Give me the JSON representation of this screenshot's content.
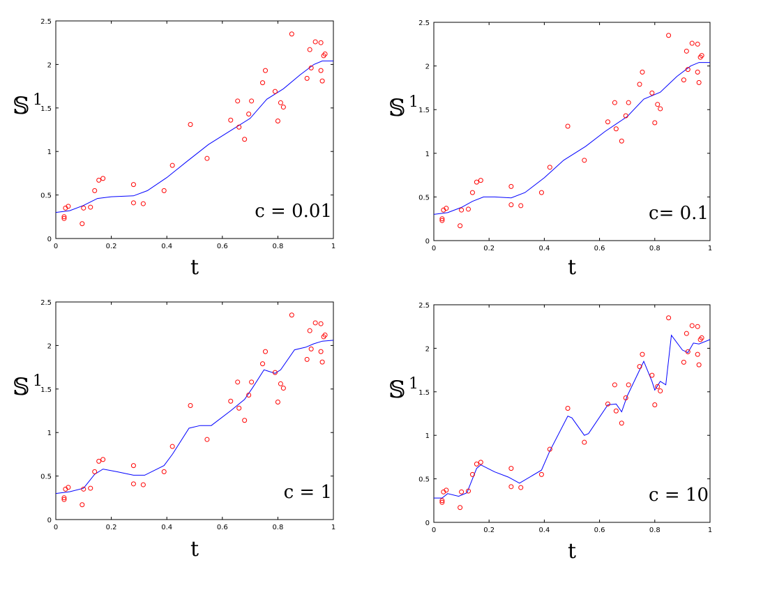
{
  "chart_data": [
    {
      "type": "scatter",
      "ylabel": "𝕊",
      "ylabel_sup": "1",
      "xlabel": "t",
      "annotation": "c = 0.01",
      "xlim": [
        0,
        1
      ],
      "ylim": [
        0,
        2.5
      ],
      "xticks": [
        "0",
        "0.2",
        "0.4",
        "0.6",
        "0.8",
        "1"
      ],
      "yticks": [
        "0",
        "0.5",
        "1",
        "1.5",
        "2",
        "2.5"
      ],
      "marker_color": "#ff0000",
      "line_color": "#0000ff",
      "points": [
        [
          0.03,
          0.25
        ],
        [
          0.03,
          0.23
        ],
        [
          0.035,
          0.35
        ],
        [
          0.045,
          0.37
        ],
        [
          0.095,
          0.17
        ],
        [
          0.1,
          0.35
        ],
        [
          0.125,
          0.36
        ],
        [
          0.14,
          0.55
        ],
        [
          0.155,
          0.67
        ],
        [
          0.17,
          0.69
        ],
        [
          0.28,
          0.62
        ],
        [
          0.28,
          0.41
        ],
        [
          0.315,
          0.4
        ],
        [
          0.39,
          0.55
        ],
        [
          0.42,
          0.84
        ],
        [
          0.485,
          1.31
        ],
        [
          0.545,
          0.92
        ],
        [
          0.63,
          1.36
        ],
        [
          0.655,
          1.58
        ],
        [
          0.66,
          1.28
        ],
        [
          0.68,
          1.14
        ],
        [
          0.695,
          1.43
        ],
        [
          0.705,
          1.58
        ],
        [
          0.745,
          1.79
        ],
        [
          0.755,
          1.93
        ],
        [
          0.79,
          1.69
        ],
        [
          0.8,
          1.35
        ],
        [
          0.81,
          1.56
        ],
        [
          0.82,
          1.51
        ],
        [
          0.85,
          2.35
        ],
        [
          0.905,
          1.84
        ],
        [
          0.915,
          2.17
        ],
        [
          0.92,
          1.96
        ],
        [
          0.935,
          2.26
        ],
        [
          0.955,
          2.25
        ],
        [
          0.955,
          1.93
        ],
        [
          0.96,
          1.81
        ],
        [
          0.965,
          2.1
        ],
        [
          0.97,
          2.12
        ]
      ],
      "curve": [
        [
          0,
          0.3
        ],
        [
          0.05,
          0.32
        ],
        [
          0.1,
          0.38
        ],
        [
          0.15,
          0.46
        ],
        [
          0.2,
          0.48
        ],
        [
          0.28,
          0.49
        ],
        [
          0.33,
          0.55
        ],
        [
          0.4,
          0.7
        ],
        [
          0.47,
          0.88
        ],
        [
          0.55,
          1.08
        ],
        [
          0.62,
          1.22
        ],
        [
          0.7,
          1.38
        ],
        [
          0.76,
          1.6
        ],
        [
          0.82,
          1.72
        ],
        [
          0.88,
          1.88
        ],
        [
          0.93,
          2.0
        ],
        [
          0.96,
          2.04
        ],
        [
          1,
          2.04
        ]
      ]
    },
    {
      "type": "scatter",
      "ylabel": "𝕊",
      "ylabel_sup": "1",
      "xlabel": "t",
      "annotation": "c= 0.1",
      "xlim": [
        0,
        1
      ],
      "ylim": [
        0,
        2.5
      ],
      "xticks": [
        "0",
        "0.2",
        "0.4",
        "0.6",
        "0.8",
        "1"
      ],
      "yticks": [
        "0",
        "0.5",
        "1",
        "1.5",
        "2",
        "2.5"
      ],
      "marker_color": "#ff0000",
      "line_color": "#0000ff",
      "points": [
        [
          0.03,
          0.25
        ],
        [
          0.03,
          0.23
        ],
        [
          0.035,
          0.35
        ],
        [
          0.045,
          0.37
        ],
        [
          0.095,
          0.17
        ],
        [
          0.1,
          0.35
        ],
        [
          0.125,
          0.36
        ],
        [
          0.14,
          0.55
        ],
        [
          0.155,
          0.67
        ],
        [
          0.17,
          0.69
        ],
        [
          0.28,
          0.62
        ],
        [
          0.28,
          0.41
        ],
        [
          0.315,
          0.4
        ],
        [
          0.39,
          0.55
        ],
        [
          0.42,
          0.84
        ],
        [
          0.485,
          1.31
        ],
        [
          0.545,
          0.92
        ],
        [
          0.63,
          1.36
        ],
        [
          0.655,
          1.58
        ],
        [
          0.66,
          1.28
        ],
        [
          0.68,
          1.14
        ],
        [
          0.695,
          1.43
        ],
        [
          0.705,
          1.58
        ],
        [
          0.745,
          1.79
        ],
        [
          0.755,
          1.93
        ],
        [
          0.79,
          1.69
        ],
        [
          0.8,
          1.35
        ],
        [
          0.81,
          1.56
        ],
        [
          0.82,
          1.51
        ],
        [
          0.85,
          2.35
        ],
        [
          0.905,
          1.84
        ],
        [
          0.915,
          2.17
        ],
        [
          0.92,
          1.96
        ],
        [
          0.935,
          2.26
        ],
        [
          0.955,
          2.25
        ],
        [
          0.955,
          1.93
        ],
        [
          0.96,
          1.81
        ],
        [
          0.965,
          2.1
        ],
        [
          0.97,
          2.12
        ]
      ],
      "curve": [
        [
          0,
          0.3
        ],
        [
          0.05,
          0.32
        ],
        [
          0.1,
          0.38
        ],
        [
          0.14,
          0.45
        ],
        [
          0.18,
          0.5
        ],
        [
          0.22,
          0.5
        ],
        [
          0.28,
          0.49
        ],
        [
          0.33,
          0.55
        ],
        [
          0.4,
          0.72
        ],
        [
          0.47,
          0.92
        ],
        [
          0.55,
          1.08
        ],
        [
          0.62,
          1.25
        ],
        [
          0.7,
          1.42
        ],
        [
          0.76,
          1.62
        ],
        [
          0.82,
          1.7
        ],
        [
          0.88,
          1.88
        ],
        [
          0.93,
          2.0
        ],
        [
          0.96,
          2.04
        ],
        [
          1,
          2.04
        ]
      ]
    },
    {
      "type": "scatter",
      "ylabel": "𝕊",
      "ylabel_sup": "1",
      "xlabel": "t",
      "annotation": "c = 1",
      "xlim": [
        0,
        1
      ],
      "ylim": [
        0,
        2.5
      ],
      "xticks": [
        "0",
        "0.2",
        "0.4",
        "0.6",
        "0.8",
        "1"
      ],
      "yticks": [
        "0",
        "0.5",
        "1",
        "1.5",
        "2",
        "2.5"
      ],
      "marker_color": "#ff0000",
      "line_color": "#0000ff",
      "points": [
        [
          0.03,
          0.25
        ],
        [
          0.03,
          0.23
        ],
        [
          0.035,
          0.35
        ],
        [
          0.045,
          0.37
        ],
        [
          0.095,
          0.17
        ],
        [
          0.1,
          0.35
        ],
        [
          0.125,
          0.36
        ],
        [
          0.14,
          0.55
        ],
        [
          0.155,
          0.67
        ],
        [
          0.17,
          0.69
        ],
        [
          0.28,
          0.62
        ],
        [
          0.28,
          0.41
        ],
        [
          0.315,
          0.4
        ],
        [
          0.39,
          0.55
        ],
        [
          0.42,
          0.84
        ],
        [
          0.485,
          1.31
        ],
        [
          0.545,
          0.92
        ],
        [
          0.63,
          1.36
        ],
        [
          0.655,
          1.58
        ],
        [
          0.66,
          1.28
        ],
        [
          0.68,
          1.14
        ],
        [
          0.695,
          1.43
        ],
        [
          0.705,
          1.58
        ],
        [
          0.745,
          1.79
        ],
        [
          0.755,
          1.93
        ],
        [
          0.79,
          1.69
        ],
        [
          0.8,
          1.35
        ],
        [
          0.81,
          1.56
        ],
        [
          0.82,
          1.51
        ],
        [
          0.85,
          2.35
        ],
        [
          0.905,
          1.84
        ],
        [
          0.915,
          2.17
        ],
        [
          0.92,
          1.96
        ],
        [
          0.935,
          2.26
        ],
        [
          0.955,
          2.25
        ],
        [
          0.955,
          1.93
        ],
        [
          0.96,
          1.81
        ],
        [
          0.965,
          2.1
        ],
        [
          0.97,
          2.12
        ]
      ],
      "curve": [
        [
          0,
          0.3
        ],
        [
          0.05,
          0.32
        ],
        [
          0.1,
          0.36
        ],
        [
          0.14,
          0.52
        ],
        [
          0.17,
          0.58
        ],
        [
          0.22,
          0.55
        ],
        [
          0.28,
          0.51
        ],
        [
          0.32,
          0.51
        ],
        [
          0.39,
          0.62
        ],
        [
          0.42,
          0.75
        ],
        [
          0.48,
          1.05
        ],
        [
          0.52,
          1.08
        ],
        [
          0.56,
          1.08
        ],
        [
          0.63,
          1.25
        ],
        [
          0.68,
          1.38
        ],
        [
          0.71,
          1.52
        ],
        [
          0.75,
          1.72
        ],
        [
          0.79,
          1.68
        ],
        [
          0.81,
          1.72
        ],
        [
          0.86,
          1.95
        ],
        [
          0.9,
          1.98
        ],
        [
          0.93,
          2.02
        ],
        [
          0.96,
          2.05
        ],
        [
          1,
          2.06
        ]
      ]
    },
    {
      "type": "scatter",
      "ylabel": "𝕊",
      "ylabel_sup": "1",
      "xlabel": "t",
      "annotation": "c = 10",
      "xlim": [
        0,
        1
      ],
      "ylim": [
        0,
        2.5
      ],
      "xticks": [
        "0",
        "0.2",
        "0.4",
        "0.6",
        "0.8",
        "1"
      ],
      "yticks": [
        "0",
        "0.5",
        "1",
        "1.5",
        "2",
        "2.5"
      ],
      "marker_color": "#ff0000",
      "line_color": "#0000ff",
      "points": [
        [
          0.03,
          0.25
        ],
        [
          0.03,
          0.23
        ],
        [
          0.035,
          0.35
        ],
        [
          0.045,
          0.37
        ],
        [
          0.095,
          0.17
        ],
        [
          0.1,
          0.35
        ],
        [
          0.125,
          0.36
        ],
        [
          0.14,
          0.55
        ],
        [
          0.155,
          0.67
        ],
        [
          0.17,
          0.69
        ],
        [
          0.28,
          0.62
        ],
        [
          0.28,
          0.41
        ],
        [
          0.315,
          0.4
        ],
        [
          0.39,
          0.55
        ],
        [
          0.42,
          0.84
        ],
        [
          0.485,
          1.31
        ],
        [
          0.545,
          0.92
        ],
        [
          0.63,
          1.36
        ],
        [
          0.655,
          1.58
        ],
        [
          0.66,
          1.28
        ],
        [
          0.68,
          1.14
        ],
        [
          0.695,
          1.43
        ],
        [
          0.705,
          1.58
        ],
        [
          0.745,
          1.79
        ],
        [
          0.755,
          1.93
        ],
        [
          0.79,
          1.69
        ],
        [
          0.8,
          1.35
        ],
        [
          0.81,
          1.56
        ],
        [
          0.82,
          1.51
        ],
        [
          0.85,
          2.35
        ],
        [
          0.905,
          1.84
        ],
        [
          0.915,
          2.17
        ],
        [
          0.92,
          1.96
        ],
        [
          0.935,
          2.26
        ],
        [
          0.955,
          2.25
        ],
        [
          0.955,
          1.93
        ],
        [
          0.96,
          1.81
        ],
        [
          0.965,
          2.1
        ],
        [
          0.97,
          2.12
        ]
      ],
      "curve": [
        [
          0,
          0.28
        ],
        [
          0.03,
          0.28
        ],
        [
          0.05,
          0.33
        ],
        [
          0.09,
          0.3
        ],
        [
          0.12,
          0.34
        ],
        [
          0.155,
          0.62
        ],
        [
          0.17,
          0.66
        ],
        [
          0.22,
          0.58
        ],
        [
          0.27,
          0.52
        ],
        [
          0.31,
          0.45
        ],
        [
          0.39,
          0.6
        ],
        [
          0.42,
          0.82
        ],
        [
          0.485,
          1.22
        ],
        [
          0.5,
          1.2
        ],
        [
          0.545,
          1.0
        ],
        [
          0.56,
          1.02
        ],
        [
          0.63,
          1.35
        ],
        [
          0.66,
          1.36
        ],
        [
          0.68,
          1.27
        ],
        [
          0.7,
          1.45
        ],
        [
          0.76,
          1.85
        ],
        [
          0.79,
          1.62
        ],
        [
          0.8,
          1.52
        ],
        [
          0.82,
          1.62
        ],
        [
          0.84,
          1.58
        ],
        [
          0.86,
          2.15
        ],
        [
          0.9,
          1.98
        ],
        [
          0.92,
          1.95
        ],
        [
          0.94,
          2.06
        ],
        [
          0.96,
          2.05
        ],
        [
          1,
          2.1
        ]
      ]
    }
  ]
}
